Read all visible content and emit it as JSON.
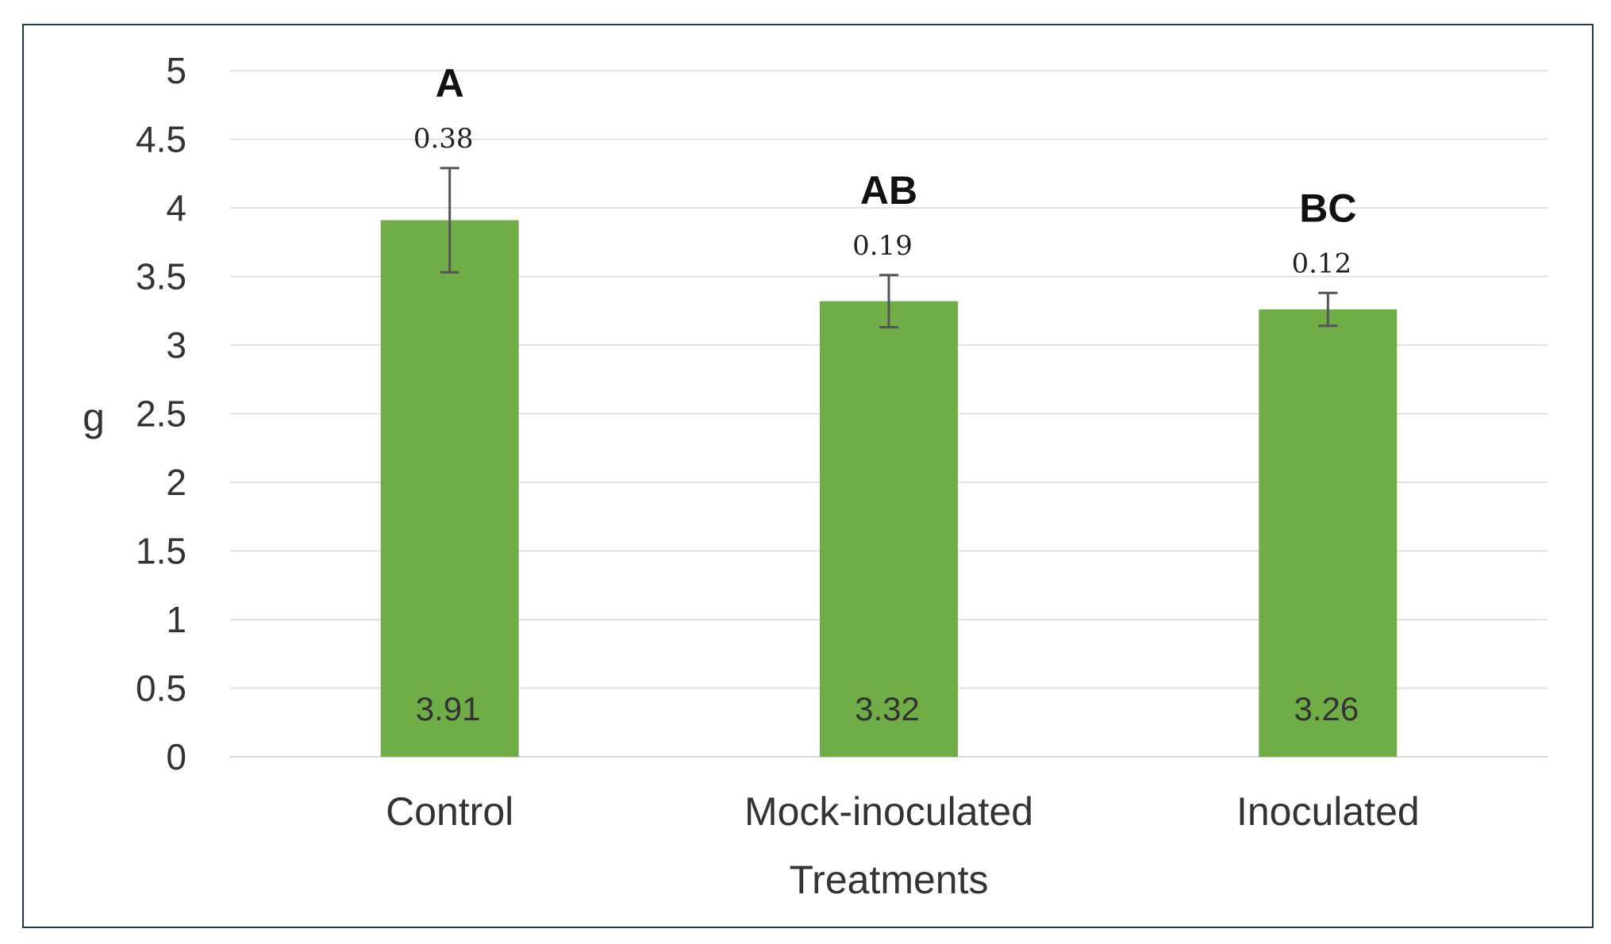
{
  "chart_data": {
    "type": "bar",
    "categories": [
      "Control",
      "Mock-inoculated",
      "Inoculated"
    ],
    "values": [
      3.91,
      3.32,
      3.26
    ],
    "value_labels": [
      "3.91",
      "3.32",
      "3.26"
    ],
    "errors": [
      0.38,
      0.19,
      0.12
    ],
    "error_labels": [
      "0.38",
      "0.19",
      "0.12"
    ],
    "group_letters": [
      "A",
      "AB",
      "BC"
    ],
    "xlabel": "Treatments",
    "ylabel": "g",
    "ylim": [
      0,
      5
    ],
    "yticks": [
      0,
      0.5,
      1,
      1.5,
      2,
      2.5,
      3,
      3.5,
      4,
      4.5,
      5
    ],
    "ytick_labels": [
      "0",
      "0.5",
      "1",
      "1.5",
      "2",
      "2.5",
      "3",
      "3.5",
      "4",
      "4.5",
      "5"
    ],
    "grid": true,
    "legend": "none",
    "colors": {
      "bar": "#70ad47",
      "grid": "#d9d9d9",
      "error_bar": "#555555",
      "frame": "#2b3a4a"
    }
  }
}
